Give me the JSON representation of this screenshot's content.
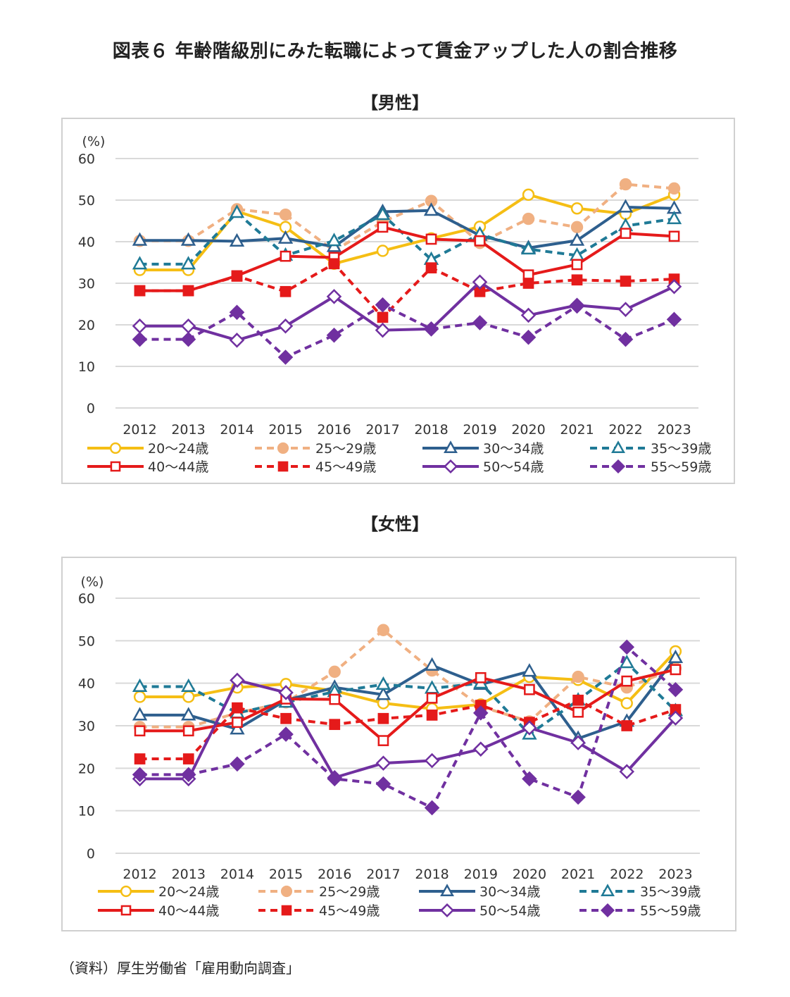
{
  "figure": {
    "title": "図表６ 年齢階級別にみた転職によって賃金アップした人の割合推移",
    "source": "（資料）厚生労働省「雇用動向調査」"
  },
  "colors": {
    "age_20_24": "#F5BE14",
    "age_25_29": "#F0B082",
    "age_30_34": "#2E5F8E",
    "age_35_39": "#1F7A96",
    "age_40_44": "#E51A1A",
    "age_45_49": "#E51A1A",
    "age_50_54": "#7030A0",
    "age_55_59": "#7030A0",
    "gridline": "#d9d9d9",
    "border": "#d0d0d0"
  },
  "chart_data": [
    {
      "panel_title": "【男性】",
      "type": "line",
      "y_unit": "(%)",
      "ylim": [
        0,
        60
      ],
      "yticks": [
        0,
        10,
        20,
        30,
        40,
        50,
        60
      ],
      "grid": true,
      "legend_position": "bottom",
      "categories": [
        "2012",
        "2013",
        "2014",
        "2015",
        "2016",
        "2017",
        "2018",
        "2019",
        "2020",
        "2021",
        "2022",
        "2023"
      ],
      "series": [
        {
          "name": "20～24歳",
          "style": "solid",
          "marker": "circle-open",
          "color_key": "age_20_24",
          "values": [
            33.2,
            33.2,
            47.3,
            43.5,
            34.7,
            37.8,
            40.8,
            43.6,
            51.3,
            48.0,
            46.7,
            51.3
          ]
        },
        {
          "name": "25～29歳",
          "style": "dashed",
          "marker": "circle-filled",
          "color_key": "age_25_29",
          "values": [
            40.2,
            40.2,
            47.8,
            46.5,
            37.8,
            44.8,
            49.8,
            39.7,
            45.5,
            43.5,
            53.8,
            52.8
          ]
        },
        {
          "name": "30～34歳",
          "style": "solid",
          "marker": "triangle-open",
          "color_key": "age_30_34",
          "values": [
            40.3,
            40.3,
            40.1,
            40.8,
            38.8,
            47.2,
            47.5,
            41.5,
            38.5,
            40.3,
            48.3,
            48.0
          ]
        },
        {
          "name": "35～39歳",
          "style": "dashed",
          "marker": "triangle-open",
          "color_key": "age_35_39",
          "values": [
            34.6,
            34.6,
            47.0,
            36.7,
            40.2,
            46.5,
            35.7,
            41.8,
            38.2,
            36.7,
            43.8,
            45.5
          ]
        },
        {
          "name": "40～44歳",
          "style": "solid",
          "marker": "square-open",
          "color_key": "age_40_44",
          "values": [
            28.2,
            28.2,
            31.8,
            36.5,
            36.2,
            43.5,
            40.6,
            40.2,
            32.0,
            34.5,
            42.0,
            41.3
          ]
        },
        {
          "name": "45～49歳",
          "style": "dashed",
          "marker": "square-filled",
          "color_key": "age_45_49",
          "values": [
            28.2,
            28.2,
            31.7,
            28.0,
            34.7,
            21.8,
            33.7,
            28.0,
            30.0,
            30.8,
            30.5,
            31.0
          ]
        },
        {
          "name": "50～54歳",
          "style": "solid",
          "marker": "diamond-open",
          "color_key": "age_50_54",
          "values": [
            19.7,
            19.7,
            16.3,
            19.7,
            26.8,
            18.7,
            19.0,
            30.3,
            22.3,
            24.7,
            23.7,
            29.2
          ]
        },
        {
          "name": "55～59歳",
          "style": "dashed",
          "marker": "diamond-filled",
          "color_key": "age_55_59",
          "values": [
            16.5,
            16.5,
            23.0,
            12.2,
            17.5,
            24.8,
            19.0,
            20.5,
            17.0,
            24.5,
            16.5,
            21.3
          ]
        }
      ]
    },
    {
      "panel_title": "【女性】",
      "type": "line",
      "y_unit": "(%)",
      "ylim": [
        0,
        60
      ],
      "yticks": [
        0,
        10,
        20,
        30,
        40,
        50,
        60
      ],
      "grid": true,
      "legend_position": "bottom",
      "categories": [
        "2012",
        "2013",
        "2014",
        "2015",
        "2016",
        "2017",
        "2018",
        "2019",
        "2020",
        "2021",
        "2022",
        "2023"
      ],
      "series": [
        {
          "name": "20～24歳",
          "style": "solid",
          "marker": "circle-open",
          "color_key": "age_20_24",
          "values": [
            36.8,
            36.8,
            39.0,
            39.8,
            38.2,
            35.3,
            34.0,
            35.0,
            41.5,
            40.8,
            35.3,
            47.5
          ]
        },
        {
          "name": "25～29歳",
          "style": "dashed",
          "marker": "circle-filled",
          "color_key": "age_25_29",
          "values": [
            29.7,
            29.7,
            33.0,
            35.5,
            42.7,
            52.5,
            43.0,
            34.5,
            31.0,
            41.5,
            39.0,
            43.5
          ]
        },
        {
          "name": "30～34歳",
          "style": "solid",
          "marker": "triangle-open",
          "color_key": "age_30_34",
          "values": [
            32.5,
            32.5,
            29.2,
            36.0,
            39.0,
            37.3,
            44.2,
            39.7,
            42.8,
            27.0,
            31.0,
            46.0
          ]
        },
        {
          "name": "35～39歳",
          "style": "dashed",
          "marker": "triangle-open",
          "color_key": "age_35_39",
          "values": [
            39.2,
            39.2,
            33.0,
            35.5,
            38.0,
            39.7,
            38.8,
            40.0,
            28.0,
            36.0,
            44.8,
            33.5
          ]
        },
        {
          "name": "40～44歳",
          "style": "solid",
          "marker": "square-open",
          "color_key": "age_40_44",
          "values": [
            28.8,
            28.8,
            30.8,
            36.3,
            36.2,
            26.5,
            36.5,
            41.3,
            38.5,
            33.2,
            40.5,
            43.2
          ]
        },
        {
          "name": "45～49歳",
          "style": "dashed",
          "marker": "square-filled",
          "color_key": "age_45_49",
          "values": [
            22.2,
            22.2,
            34.2,
            31.7,
            30.3,
            31.7,
            32.5,
            34.8,
            30.8,
            36.0,
            30.0,
            33.8
          ]
        },
        {
          "name": "50～54歳",
          "style": "solid",
          "marker": "diamond-open",
          "color_key": "age_50_54",
          "values": [
            17.5,
            17.5,
            40.7,
            37.8,
            17.8,
            21.2,
            21.8,
            24.5,
            29.5,
            26.0,
            19.2,
            31.8
          ]
        },
        {
          "name": "55～59歳",
          "style": "dashed",
          "marker": "diamond-filled",
          "color_key": "age_55_59",
          "values": [
            18.5,
            18.5,
            21.0,
            28.0,
            17.5,
            16.3,
            10.7,
            33.0,
            17.5,
            13.2,
            48.5,
            38.5
          ]
        }
      ]
    }
  ]
}
